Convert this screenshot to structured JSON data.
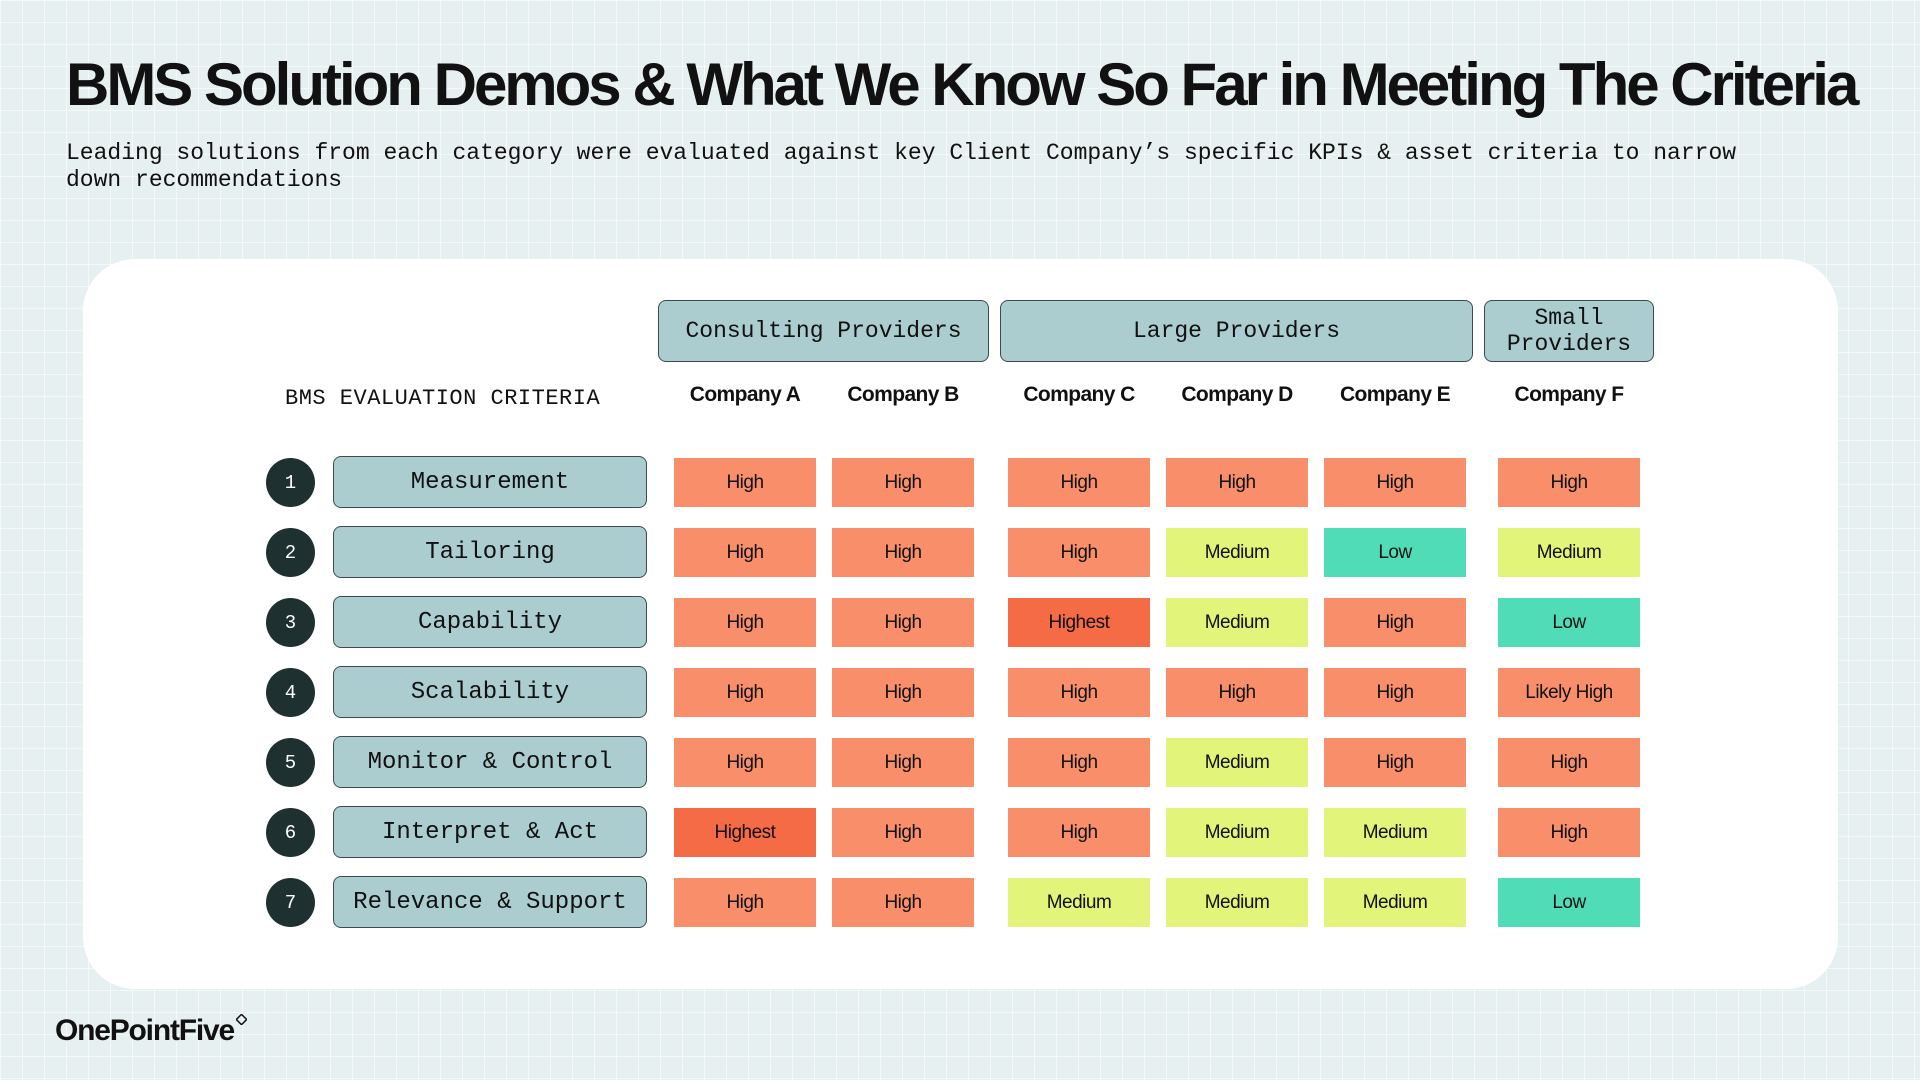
{
  "title": "BMS Solution Demos & What We Know So Far in Meeting The Criteria",
  "subtitle": "Leading solutions from each category were evaluated against key Client Company’s specific KPIs & asset criteria to narrow down recommendations",
  "table": {
    "criteria_heading": "BMS EVALUATION CRITERIA",
    "groups": [
      {
        "label": "Consulting Providers"
      },
      {
        "label": "Large Providers"
      },
      {
        "label": "Small Providers"
      }
    ],
    "companies": [
      "Company A",
      "Company B",
      "Company C",
      "Company D",
      "Company E",
      "Company F"
    ],
    "rows": [
      {
        "num": "1",
        "label": "Measurement",
        "values": [
          "High",
          "High",
          "High",
          "High",
          "High",
          "High"
        ]
      },
      {
        "num": "2",
        "label": "Tailoring",
        "values": [
          "High",
          "High",
          "High",
          "Medium",
          "Low",
          "Medium"
        ]
      },
      {
        "num": "3",
        "label": "Capability",
        "values": [
          "High",
          "High",
          "Highest",
          "Medium",
          "High",
          "Low"
        ]
      },
      {
        "num": "4",
        "label": "Scalability",
        "values": [
          "High",
          "High",
          "High",
          "High",
          "High",
          "Likely High"
        ]
      },
      {
        "num": "5",
        "label": "Monitor & Control",
        "values": [
          "High",
          "High",
          "High",
          "Medium",
          "High",
          "High"
        ]
      },
      {
        "num": "6",
        "label": "Interpret & Act",
        "values": [
          "Highest",
          "High",
          "High",
          "Medium",
          "Medium",
          "High"
        ]
      },
      {
        "num": "7",
        "label": "Relevance & Support",
        "values": [
          "High",
          "High",
          "Medium",
          "Medium",
          "Medium",
          "Low"
        ]
      }
    ],
    "level_colors": {
      "Highest": "#f56b45",
      "High": "#f98f6a",
      "Likely High": "#f98f6a",
      "Medium": "#e2f47a",
      "Low": "#4fdcb6"
    }
  },
  "footer": {
    "logo_text": "OnePointFive"
  }
}
